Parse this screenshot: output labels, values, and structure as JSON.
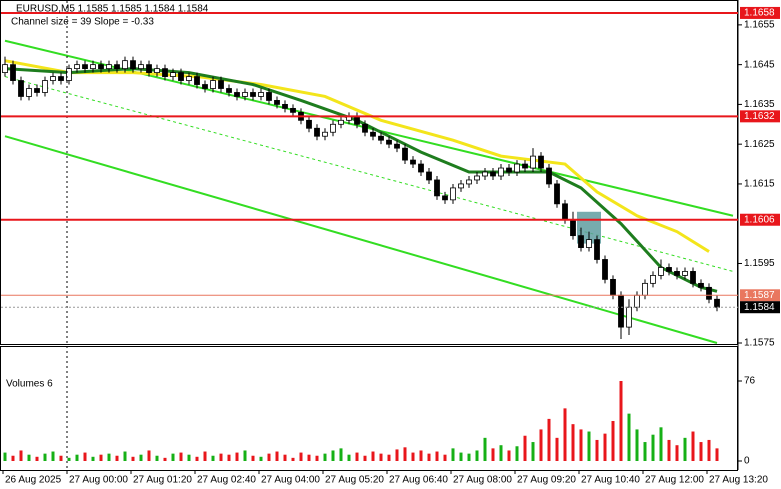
{
  "chart_data": {
    "type": "candlestick",
    "title": "EURUSD,M5 1.1585 1.1585 1.1584 1.1584",
    "subtitle": "Channel size = 39 Slope = -0.33",
    "x_labels": [
      "26 Aug 2025",
      "27 Aug 00:00",
      "27 Aug 01:20",
      "27 Aug 02:40",
      "27 Aug 04:00",
      "27 Aug 05:20",
      "27 Aug 06:40",
      "27 Aug 08:00",
      "27 Aug 09:20",
      "27 Aug 10:40",
      "27 Aug 12:00",
      "27 Aug 13:20"
    ],
    "ylim": [
      1.15745,
      1.16605
    ],
    "yticks": [
      1.1655,
      1.1645,
      1.1635,
      1.1625,
      1.1615,
      1.1595,
      1.1575
    ],
    "candles": [
      [
        1.1643,
        1.1647,
        1.1642,
        1.1645
      ],
      [
        1.1645,
        1.1646,
        1.164,
        1.1641
      ],
      [
        1.1641,
        1.1642,
        1.1636,
        1.1637
      ],
      [
        1.1637,
        1.164,
        1.1636,
        1.1639
      ],
      [
        1.1639,
        1.164,
        1.1637,
        1.1638
      ],
      [
        1.1638,
        1.1642,
        1.1637,
        1.1641
      ],
      [
        1.1641,
        1.1643,
        1.164,
        1.1642
      ],
      [
        1.1642,
        1.1643,
        1.164,
        1.1641
      ],
      [
        1.1641,
        1.1645,
        1.164,
        1.1644
      ],
      [
        1.1644,
        1.1646,
        1.1643,
        1.1645
      ],
      [
        1.1645,
        1.1646,
        1.1643,
        1.1644
      ],
      [
        1.1644,
        1.1646,
        1.1643,
        1.1645
      ],
      [
        1.1645,
        1.1646,
        1.1643,
        1.1644
      ],
      [
        1.1644,
        1.1646,
        1.1643,
        1.1645
      ],
      [
        1.1645,
        1.1646,
        1.1643,
        1.1644
      ],
      [
        1.1644,
        1.1647,
        1.1643,
        1.1646
      ],
      [
        1.1646,
        1.1647,
        1.1643,
        1.1644
      ],
      [
        1.1644,
        1.1646,
        1.1643,
        1.1645
      ],
      [
        1.1645,
        1.1646,
        1.1642,
        1.1643
      ],
      [
        1.1643,
        1.1645,
        1.1642,
        1.1644
      ],
      [
        1.1644,
        1.1645,
        1.1641,
        1.1642
      ],
      [
        1.1642,
        1.1644,
        1.1641,
        1.1643
      ],
      [
        1.1643,
        1.1644,
        1.164,
        1.1641
      ],
      [
        1.1641,
        1.1643,
        1.164,
        1.1642
      ],
      [
        1.1642,
        1.1643,
        1.1639,
        1.164
      ],
      [
        1.164,
        1.1641,
        1.1638,
        1.1639
      ],
      [
        1.1639,
        1.1642,
        1.1638,
        1.1641
      ],
      [
        1.1641,
        1.1642,
        1.1638,
        1.1639
      ],
      [
        1.1639,
        1.164,
        1.1637,
        1.1638
      ],
      [
        1.1638,
        1.1639,
        1.1636,
        1.1637
      ],
      [
        1.1637,
        1.1639,
        1.1636,
        1.1638
      ],
      [
        1.1638,
        1.1639,
        1.1636,
        1.1637
      ],
      [
        1.1637,
        1.1639,
        1.1636,
        1.1638
      ],
      [
        1.1638,
        1.1639,
        1.1635,
        1.1636
      ],
      [
        1.1636,
        1.1637,
        1.1634,
        1.1635
      ],
      [
        1.1635,
        1.1636,
        1.1633,
        1.1634
      ],
      [
        1.1634,
        1.1635,
        1.1632,
        1.1633
      ],
      [
        1.1633,
        1.1634,
        1.163,
        1.1631
      ],
      [
        1.1631,
        1.1632,
        1.1628,
        1.1629
      ],
      [
        1.1629,
        1.163,
        1.1626,
        1.1627
      ],
      [
        1.1627,
        1.1629,
        1.1626,
        1.1628
      ],
      [
        1.1628,
        1.1631,
        1.1627,
        1.163
      ],
      [
        1.163,
        1.1632,
        1.1629,
        1.1631
      ],
      [
        1.1631,
        1.1633,
        1.163,
        1.1632
      ],
      [
        1.1632,
        1.1633,
        1.1629,
        1.163
      ],
      [
        1.163,
        1.1631,
        1.1627,
        1.1628
      ],
      [
        1.1628,
        1.1629,
        1.1626,
        1.1627
      ],
      [
        1.1627,
        1.1628,
        1.1625,
        1.1626
      ],
      [
        1.1626,
        1.1627,
        1.1624,
        1.1625
      ],
      [
        1.1625,
        1.1626,
        1.1623,
        1.1624
      ],
      [
        1.1624,
        1.1625,
        1.162,
        1.1621
      ],
      [
        1.1621,
        1.1622,
        1.1619,
        1.162
      ],
      [
        1.162,
        1.1621,
        1.1617,
        1.1618
      ],
      [
        1.1618,
        1.1619,
        1.1615,
        1.1616
      ],
      [
        1.1616,
        1.1617,
        1.1611,
        1.1612
      ],
      [
        1.1612,
        1.1613,
        1.161,
        1.1611
      ],
      [
        1.1611,
        1.1615,
        1.161,
        1.1614
      ],
      [
        1.1614,
        1.1616,
        1.1613,
        1.1615
      ],
      [
        1.1615,
        1.1617,
        1.1614,
        1.1616
      ],
      [
        1.1616,
        1.1618,
        1.1615,
        1.1617
      ],
      [
        1.1617,
        1.1619,
        1.1616,
        1.1618
      ],
      [
        1.1618,
        1.1619,
        1.1616,
        1.1617
      ],
      [
        1.1617,
        1.162,
        1.1616,
        1.1619
      ],
      [
        1.1619,
        1.162,
        1.1617,
        1.1618
      ],
      [
        1.1618,
        1.1621,
        1.1617,
        1.162
      ],
      [
        1.162,
        1.1621,
        1.1618,
        1.1619
      ],
      [
        1.1619,
        1.1624,
        1.1618,
        1.1622
      ],
      [
        1.1622,
        1.1623,
        1.1618,
        1.1619
      ],
      [
        1.1619,
        1.162,
        1.1614,
        1.1615
      ],
      [
        1.1615,
        1.1616,
        1.1609,
        1.161
      ],
      [
        1.161,
        1.1611,
        1.1605,
        1.1606
      ],
      [
        1.1606,
        1.1608,
        1.1601,
        1.1602
      ],
      [
        1.1602,
        1.1604,
        1.1598,
        1.1599
      ],
      [
        1.1599,
        1.1603,
        1.1598,
        1.1601
      ],
      [
        1.1601,
        1.1602,
        1.1595,
        1.1596
      ],
      [
        1.1596,
        1.1597,
        1.159,
        1.1591
      ],
      [
        1.1591,
        1.1592,
        1.1586,
        1.1587
      ],
      [
        1.1587,
        1.1588,
        1.1576,
        1.1579
      ],
      [
        1.1579,
        1.1586,
        1.1577,
        1.1584
      ],
      [
        1.1584,
        1.1588,
        1.1583,
        1.1587
      ],
      [
        1.1587,
        1.1591,
        1.1586,
        1.159
      ],
      [
        1.159,
        1.1593,
        1.1589,
        1.1592
      ],
      [
        1.1592,
        1.1596,
        1.1591,
        1.1594
      ],
      [
        1.1594,
        1.1595,
        1.1592,
        1.1593
      ],
      [
        1.1593,
        1.1594,
        1.1591,
        1.1592
      ],
      [
        1.1592,
        1.1594,
        1.1591,
        1.1593
      ],
      [
        1.1593,
        1.1594,
        1.1589,
        1.159
      ],
      [
        1.159,
        1.1591,
        1.1588,
        1.1589
      ],
      [
        1.1589,
        1.159,
        1.1585,
        1.1586
      ],
      [
        1.1586,
        1.1587,
        1.1583,
        1.1584
      ]
    ],
    "levels": [
      {
        "value": 1.1658,
        "color": "#e8161b"
      },
      {
        "value": 1.1632,
        "color": "#e8161b"
      },
      {
        "value": 1.1606,
        "color": "#e8161b"
      },
      {
        "value": 1.1587,
        "color": "#e9775f"
      }
    ],
    "current_price": {
      "value": 1.1584,
      "color": "#000000"
    },
    "moving_averages": [
      {
        "color": "#f3e51b",
        "x": [
          0,
          8,
          16,
          24,
          32,
          40,
          47,
          56,
          62,
          70,
          74,
          79,
          84,
          88
        ],
        "values": [
          1.1646,
          1.1643,
          1.1643,
          1.1642,
          1.164,
          1.1637,
          1.1631,
          1.1626,
          1.1622,
          1.162,
          1.1613,
          1.1607,
          1.1603,
          1.1598
        ]
      },
      {
        "color": "#1e7d1e",
        "x": [
          0,
          8,
          16,
          23,
          31,
          37,
          44,
          52,
          58,
          64,
          68,
          72,
          77,
          82,
          87,
          89
        ],
        "values": [
          1.1644,
          1.1643,
          1.1644,
          1.1643,
          1.164,
          1.1636,
          1.1631,
          1.1623,
          1.1618,
          1.1618,
          1.1618,
          1.1614,
          1.1605,
          1.1594,
          1.1589,
          1.1588
        ]
      }
    ],
    "channel": [
      {
        "color": "#33dd22",
        "dashed": false,
        "x": [
          0,
          91
        ],
        "values": [
          1.1651,
          1.1607
        ]
      },
      {
        "color": "#33dd22",
        "dashed": true,
        "x": [
          0,
          91
        ],
        "values": [
          1.1642,
          1.1593
        ]
      },
      {
        "color": "#33dd22",
        "dashed": false,
        "x": [
          0,
          89
        ],
        "values": [
          1.1627,
          1.1575
        ]
      }
    ],
    "zone": {
      "x": [
        71.5,
        74.5
      ],
      "values": [
        1.1608,
        1.16
      ],
      "color": "#5f9ea0"
    },
    "volume": {
      "title": "Volumes 6",
      "ylim": [
        0,
        76
      ],
      "yticks": [
        76,
        0
      ],
      "up_color": "#16b016",
      "down_color": "#e8161b",
      "values": [
        8,
        5,
        10,
        6,
        4,
        7,
        9,
        5,
        3,
        6,
        8,
        4,
        6,
        7,
        5,
        9,
        4,
        6,
        10,
        5,
        3,
        7,
        8,
        6,
        4,
        9,
        5,
        7,
        6,
        8,
        10,
        5,
        4,
        7,
        9,
        6,
        3,
        8,
        6,
        5,
        7,
        10,
        12,
        6,
        8,
        5,
        9,
        7,
        6,
        11,
        13,
        8,
        10,
        7,
        9,
        6,
        12,
        8,
        7,
        10,
        22,
        12,
        15,
        10,
        14,
        24,
        18,
        30,
        40,
        22,
        50,
        35,
        30,
        28,
        20,
        26,
        38,
        76,
        45,
        30,
        18,
        25,
        32,
        20,
        15,
        22,
        28,
        18,
        20,
        12
      ]
    }
  }
}
